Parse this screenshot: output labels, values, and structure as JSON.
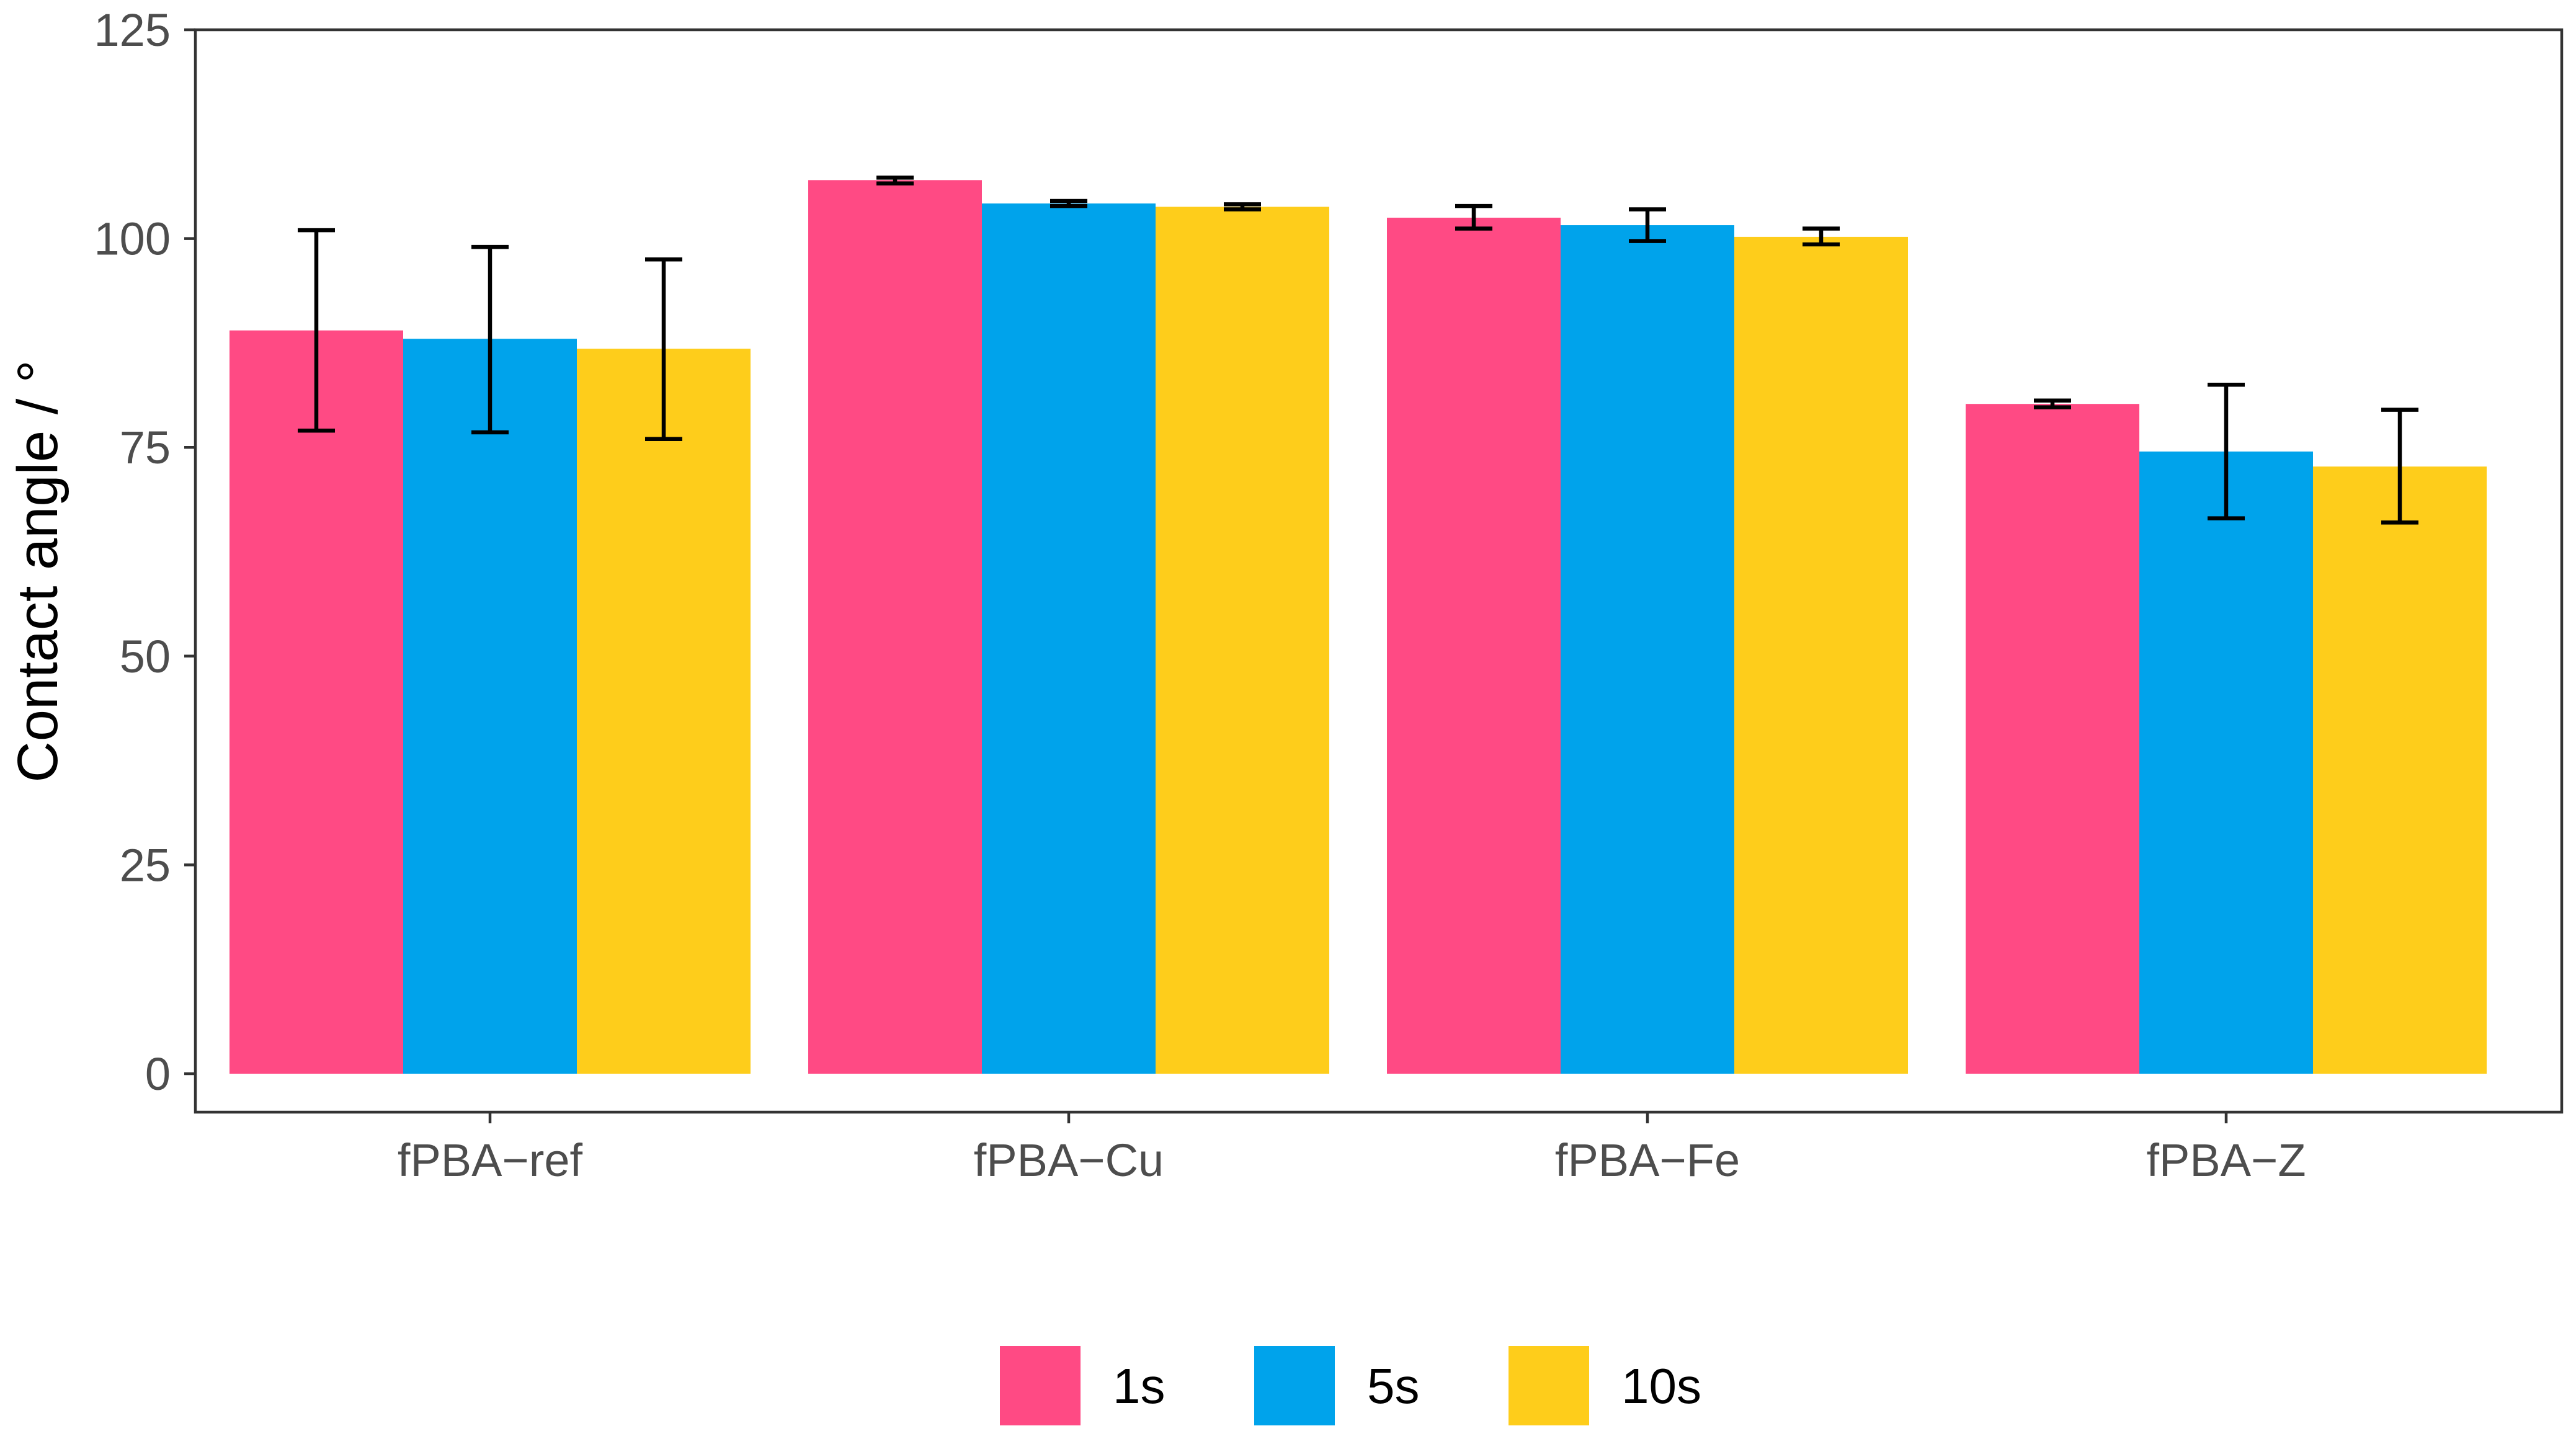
{
  "chart_data": {
    "type": "bar",
    "title": "",
    "xlabel": "",
    "ylabel": "Contact angle / °",
    "ylim": [
      0,
      125
    ],
    "yticks": [
      0,
      25,
      50,
      75,
      100,
      125
    ],
    "grid": false,
    "legend_position": "bottom",
    "categories": [
      "fPBA−ref",
      "fPBA−Cu",
      "fPBA−Fe",
      "fPBA−Z"
    ],
    "series": [
      {
        "name": "1s",
        "color": "#FF4A84",
        "values": [
          89,
          107,
          102.5,
          80.2
        ],
        "error_low": [
          77,
          106.6,
          101.2,
          79.8
        ],
        "error_high": [
          101,
          107.3,
          103.9,
          80.6
        ]
      },
      {
        "name": "5s",
        "color": "#00A3EB",
        "values": [
          88,
          104.2,
          101.6,
          74.5
        ],
        "error_low": [
          76.8,
          103.9,
          99.7,
          66.5
        ],
        "error_high": [
          99,
          104.5,
          103.5,
          82.5
        ]
      },
      {
        "name": "10s",
        "color": "#FECD1B",
        "values": [
          86.8,
          103.8,
          100.2,
          72.7
        ],
        "error_low": [
          76,
          103.5,
          99.3,
          66
        ],
        "error_high": [
          97.5,
          104.1,
          101.2,
          79.5
        ]
      }
    ]
  }
}
